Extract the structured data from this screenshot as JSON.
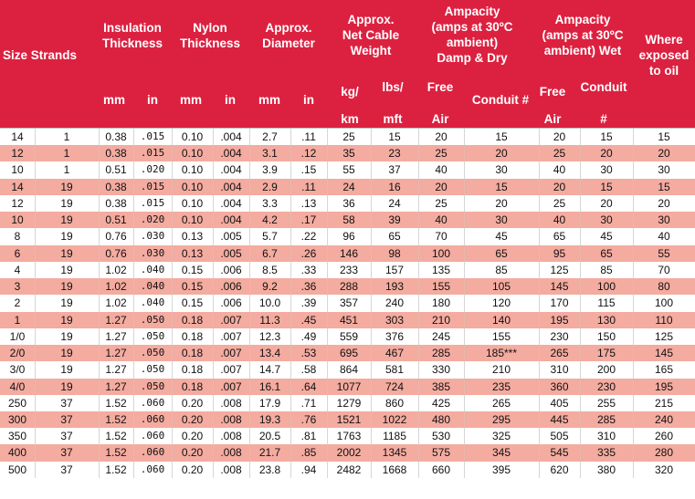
{
  "header": {
    "size_strands": "Size Strands",
    "insulation": "Insulation\nThickness",
    "nylon": "Nylon\nThickness",
    "diameter": "Approx.\nDiameter",
    "weight": "Approx.\nNet Cable\nWeight",
    "amp_dry": "Ampacity\n(amps at 30ºC\nambient)\nDamp & Dry",
    "amp_wet": "Ampacity\n(amps at 30ºC\nambient) Wet",
    "oil": "Where\nexposed\nto oil",
    "units": {
      "ins_mm": "mm",
      "ins_in": "in",
      "nyl_mm": "mm",
      "nyl_in": "in",
      "dia_mm": "mm",
      "dia_in": "in",
      "kg1": "kg/",
      "kg2": "km",
      "lbs1": "lbs/",
      "lbs2": "mft",
      "free1": "Free",
      "free2": "Air",
      "cond_dry": "Conduit #",
      "wfree1": "Free",
      "wfree2": "Air",
      "wcond1": "Conduit",
      "wcond2": "#"
    }
  },
  "rows": [
    [
      "14",
      "1",
      "0.38",
      ".015",
      "0.10",
      ".004",
      "2.7",
      ".11",
      "25",
      "15",
      "20",
      "15",
      "20",
      "15",
      "15"
    ],
    [
      "12",
      "1",
      "0.38",
      ".015",
      "0.10",
      ".004",
      "3.1",
      ".12",
      "35",
      "23",
      "25",
      "20",
      "25",
      "20",
      "20"
    ],
    [
      "10",
      "1",
      "0.51",
      ".020",
      "0.10",
      ".004",
      "3.9",
      ".15",
      "55",
      "37",
      "40",
      "30",
      "40",
      "30",
      "30"
    ],
    [
      "14",
      "19",
      "0.38",
      ".015",
      "0.10",
      ".004",
      "2.9",
      ".11",
      "24",
      "16",
      "20",
      "15",
      "20",
      "15",
      "15"
    ],
    [
      "12",
      "19",
      "0.38",
      ".015",
      "0.10",
      ".004",
      "3.3",
      ".13",
      "36",
      "24",
      "25",
      "20",
      "25",
      "20",
      "20"
    ],
    [
      "10",
      "19",
      "0.51",
      ".020",
      "0.10",
      ".004",
      "4.2",
      ".17",
      "58",
      "39",
      "40",
      "30",
      "40",
      "30",
      "30"
    ],
    [
      "8",
      "19",
      "0.76",
      ".030",
      "0.13",
      ".005",
      "5.7",
      ".22",
      "96",
      "65",
      "70",
      "45",
      "65",
      "45",
      "40"
    ],
    [
      "6",
      "19",
      "0.76",
      ".030",
      "0.13",
      ".005",
      "6.7",
      ".26",
      "146",
      "98",
      "100",
      "65",
      "95",
      "65",
      "55"
    ],
    [
      "4",
      "19",
      "1.02",
      ".040",
      "0.15",
      ".006",
      "8.5",
      ".33",
      "233",
      "157",
      "135",
      "85",
      "125",
      "85",
      "70"
    ],
    [
      "3",
      "19",
      "1.02",
      ".040",
      "0.15",
      ".006",
      "9.2",
      ".36",
      "288",
      "193",
      "155",
      "105",
      "145",
      "100",
      "80"
    ],
    [
      "2",
      "19",
      "1.02",
      ".040",
      "0.15",
      ".006",
      "10.0",
      ".39",
      "357",
      "240",
      "180",
      "120",
      "170",
      "115",
      "100"
    ],
    [
      "1",
      "19",
      "1.27",
      ".050",
      "0.18",
      ".007",
      "11.3",
      ".45",
      "451",
      "303",
      "210",
      "140",
      "195",
      "130",
      "110"
    ],
    [
      "1/0",
      "19",
      "1.27",
      ".050",
      "0.18",
      ".007",
      "12.3",
      ".49",
      "559",
      "376",
      "245",
      "155",
      "230",
      "150",
      "125"
    ],
    [
      "2/0",
      "19",
      "1.27",
      ".050",
      "0.18",
      ".007",
      "13.4",
      ".53",
      "695",
      "467",
      "285",
      "185***",
      "265",
      "175",
      "145"
    ],
    [
      "3/0",
      "19",
      "1.27",
      ".050",
      "0.18",
      ".007",
      "14.7",
      ".58",
      "864",
      "581",
      "330",
      "210",
      "310",
      "200",
      "165"
    ],
    [
      "4/0",
      "19",
      "1.27",
      ".050",
      "0.18",
      ".007",
      "16.1",
      ".64",
      "1077",
      "724",
      "385",
      "235",
      "360",
      "230",
      "195"
    ],
    [
      "250",
      "37",
      "1.52",
      ".060",
      "0.20",
      ".008",
      "17.9",
      ".71",
      "1279",
      "860",
      "425",
      "265",
      "405",
      "255",
      "215"
    ],
    [
      "300",
      "37",
      "1.52",
      ".060",
      "0.20",
      ".008",
      "19.3",
      ".76",
      "1521",
      "1022",
      "480",
      "295",
      "445",
      "285",
      "240"
    ],
    [
      "350",
      "37",
      "1.52",
      ".060",
      "0.20",
      ".008",
      "20.5",
      ".81",
      "1763",
      "1185",
      "530",
      "325",
      "505",
      "310",
      "260"
    ],
    [
      "400",
      "37",
      "1.52",
      ".060",
      "0.20",
      ".008",
      "21.7",
      ".85",
      "2002",
      "1345",
      "575",
      "345",
      "545",
      "335",
      "280"
    ],
    [
      "500",
      "37",
      "1.52",
      ".060",
      "0.20",
      ".008",
      "23.8",
      ".94",
      "2482",
      "1668",
      "660",
      "395",
      "620",
      "380",
      "320"
    ]
  ]
}
